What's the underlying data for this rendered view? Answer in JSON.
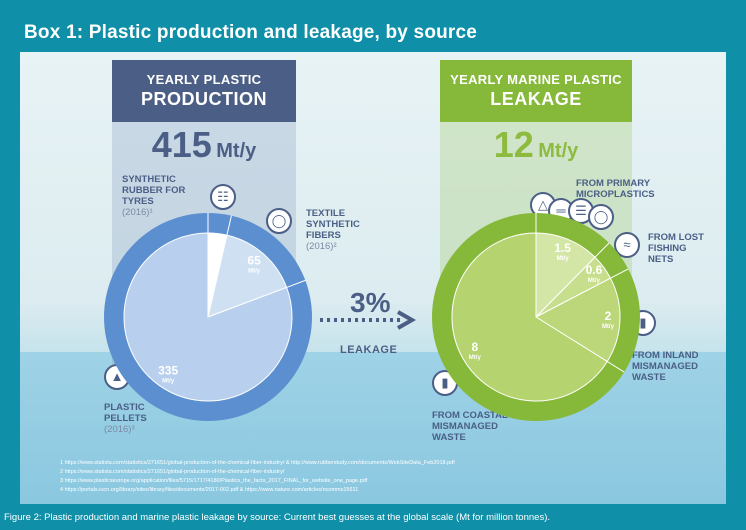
{
  "title": "Box 1: Plastic production and leakage, by source",
  "production": {
    "header_line1": "YEARLY PLASTIC",
    "header_line2": "PRODUCTION",
    "total_value": "415",
    "total_unit": "Mt/y",
    "labels": {
      "rubber": [
        "SYNTHETIC",
        "RUBBER FOR",
        "TYRES"
      ],
      "rubber_src": "(2016)¹",
      "textile": [
        "TEXTILE",
        "SYNTHETIC",
        "FIBERS"
      ],
      "textile_src": "(2016)²",
      "pellets": [
        "PLASTIC",
        "PELLETS"
      ],
      "pellets_src": "(2016)³"
    }
  },
  "leakage": {
    "header_line1": "YEARLY MARINE PLASTIC",
    "header_line2": "LEAKAGE",
    "total_value": "12",
    "total_unit": "Mt/y",
    "labels": {
      "micro": [
        "FROM PRIMARY",
        "MICROPLASTICS"
      ],
      "nets": [
        "FROM LOST",
        "FISHING",
        "NETS"
      ],
      "inland": [
        "FROM INLAND",
        "MISMANAGED",
        "WASTE"
      ],
      "coastal": [
        "FROM COASTAL",
        "MISMANAGED",
        "WASTE"
      ]
    }
  },
  "middle": {
    "percent": "3%",
    "label": "LEAKAGE"
  },
  "chart_data": [
    {
      "type": "pie",
      "title": "YEARLY PLASTIC PRODUCTION",
      "total": 415,
      "unit": "Mt/y",
      "categories": [
        "SYNTHETIC RUBBER FOR TYRES",
        "TEXTILE SYNTHETIC FIBERS",
        "PLASTIC PELLETS"
      ],
      "values": [
        15,
        65,
        335
      ],
      "value_labels": [
        "15",
        "65",
        "335"
      ],
      "colors": [
        "#ffffff",
        "#cfe0f3",
        "#b8cfee"
      ]
    },
    {
      "type": "pie",
      "title": "YEARLY MARINE PLASTIC LEAKAGE",
      "total": 12,
      "unit": "Mt/y",
      "categories": [
        "FROM PRIMARY MICROPLASTICS",
        "FROM LOST FISHING NETS",
        "FROM INLAND MISMANAGED WASTE",
        "FROM COASTAL MISMANAGED WASTE"
      ],
      "values": [
        1.5,
        0.6,
        2,
        8
      ],
      "value_labels": [
        "1.5",
        "0.6",
        "2",
        "8"
      ],
      "colors": [
        "#d4e6a6",
        "#c7de8c",
        "#bcd77a",
        "#b5d36e"
      ]
    }
  ],
  "footnotes": [
    "1 https://www.statista.com/statistics/271651/global-production-of-the-chemical-fiber-industry/ & http://www.rubberstudy.com/documents/WebSiteData_Feb2018.pdf",
    "2 https://www.statista.com/statistics/271651/global-production-of-the-chemical-fiber-industry/",
    "3 https://www.plasticseurope.org/application/files/5715/1717/4180/Plastics_the_facts_2017_FINAL_for_website_one_page.pdf",
    "4 https://portals.iucn.org/library/sites/library/files/documents/2017-002.pdf  &  https://www.nature.com/articles/ncomms15611"
  ],
  "caption": "Figure 2: Plastic production and marine plastic leakage by source: Current best guesses at the global scale (Mt for million tonnes).",
  "colors": {
    "production": "#4b5f86",
    "leakage": "#86b93a",
    "frame": "#0f8fa8"
  }
}
